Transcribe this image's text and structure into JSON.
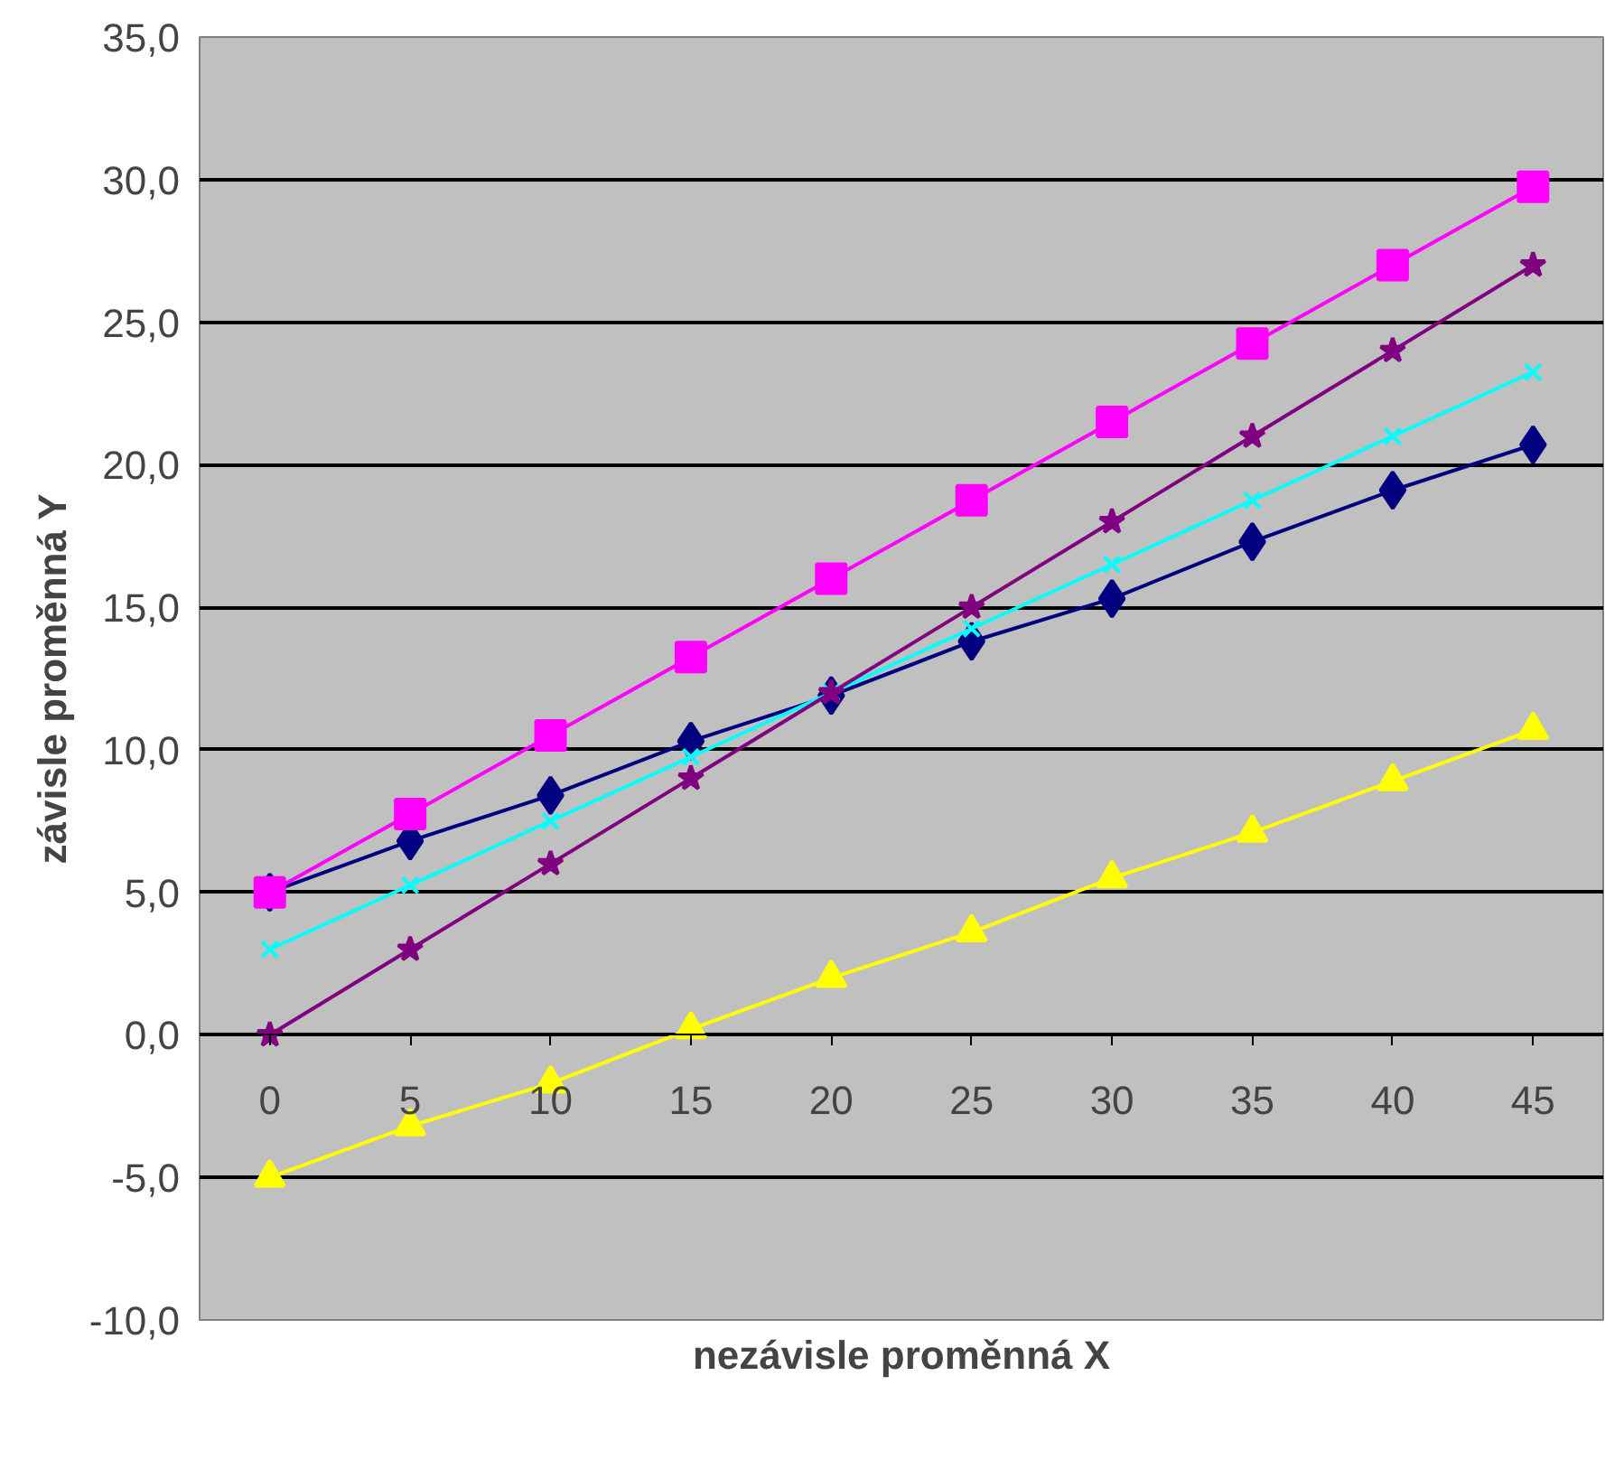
{
  "chart_data": {
    "type": "line",
    "xlabel": "nezávisle proměnná X",
    "ylabel": "závisle proměnná Y",
    "categories": [
      "0",
      "5",
      "10",
      "15",
      "20",
      "25",
      "30",
      "35",
      "40",
      "45"
    ],
    "series": [
      {
        "color": "#000080",
        "marker": "diamond",
        "values": [
          5,
          6.8,
          8.4,
          10.3,
          11.9,
          13.8,
          15.3,
          17.3,
          19.1,
          20.7
        ]
      },
      {
        "color": "#ff00ff",
        "marker": "square",
        "values": [
          5,
          7.75,
          10.5,
          13.25,
          16,
          18.75,
          21.5,
          24.25,
          27,
          29.75
        ]
      },
      {
        "color": "#ffff00",
        "marker": "triangle",
        "values": [
          -5,
          -3.2,
          -1.7,
          0.2,
          2,
          3.6,
          5.5,
          7.1,
          8.9,
          10.7
        ]
      },
      {
        "color": "#00ffff",
        "marker": "cross",
        "values": [
          3,
          5.25,
          7.5,
          9.75,
          12,
          14.25,
          16.5,
          18.75,
          21,
          23.25
        ]
      },
      {
        "color": "#800080",
        "marker": "star",
        "values": [
          0,
          3,
          6,
          9,
          12,
          15,
          18,
          21,
          24,
          27
        ]
      }
    ],
    "ylim": [
      -10,
      35
    ],
    "yticks": [
      {
        "value": -10,
        "label": "-10,0"
      },
      {
        "value": -5,
        "label": "-5,0"
      },
      {
        "value": 0,
        "label": "0,0"
      },
      {
        "value": 5,
        "label": "5,0"
      },
      {
        "value": 10,
        "label": "10,0"
      },
      {
        "value": 15,
        "label": "15,0"
      },
      {
        "value": 20,
        "label": "20,0"
      },
      {
        "value": 25,
        "label": "25,0"
      },
      {
        "value": 30,
        "label": "30,0"
      },
      {
        "value": 35,
        "label": "35,0"
      }
    ],
    "grid": "y"
  }
}
